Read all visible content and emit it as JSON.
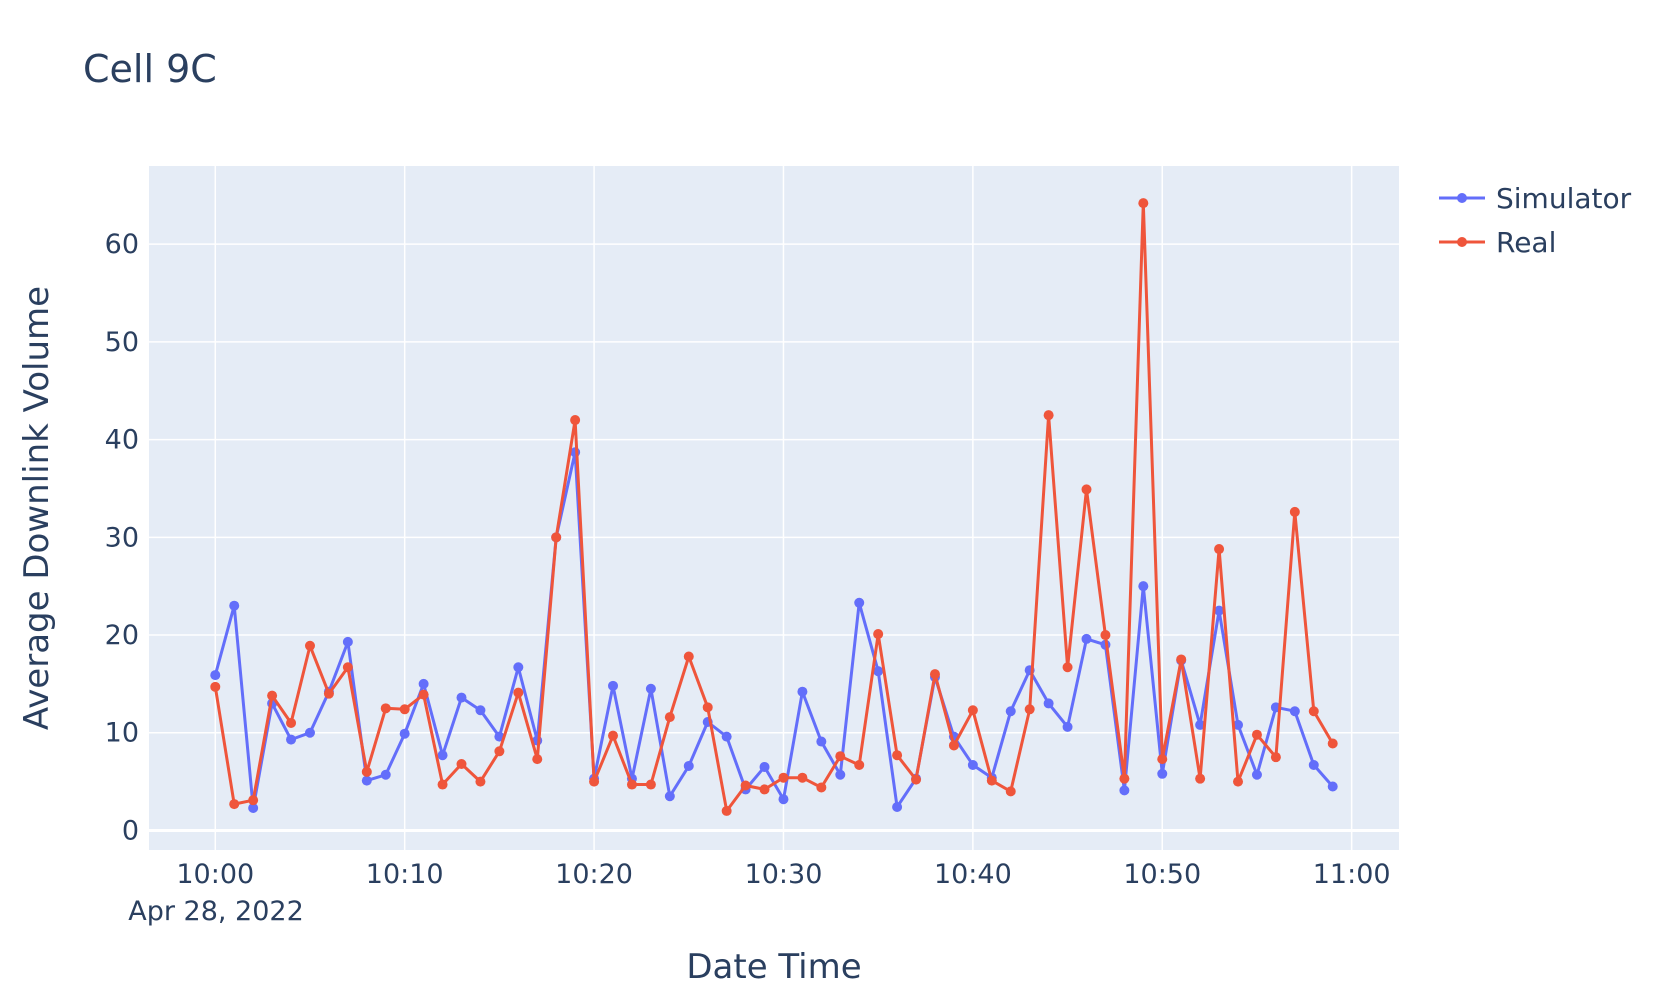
{
  "chart_data": {
    "type": "line",
    "title": "Cell 9C",
    "xlabel": "Date Time",
    "ylabel": "Average Downlink Volume",
    "x_date_label": "Apr 28, 2022",
    "x_ticks": [
      "10:00",
      "10:10",
      "10:20",
      "10:30",
      "10:40",
      "10:50",
      "11:00"
    ],
    "y_ticks": [
      0,
      10,
      20,
      30,
      40,
      50,
      60
    ],
    "xlim": [
      "09:56:30",
      "11:02:30"
    ],
    "ylim": [
      -2,
      68
    ],
    "x": [
      "10:00",
      "10:01",
      "10:02",
      "10:03",
      "10:04",
      "10:05",
      "10:06",
      "10:07",
      "10:08",
      "10:09",
      "10:10",
      "10:11",
      "10:12",
      "10:13",
      "10:14",
      "10:15",
      "10:16",
      "10:17",
      "10:18",
      "10:19",
      "10:20",
      "10:21",
      "10:22",
      "10:23",
      "10:24",
      "10:25",
      "10:26",
      "10:27",
      "10:28",
      "10:29",
      "10:30",
      "10:31",
      "10:32",
      "10:33",
      "10:34",
      "10:35",
      "10:36",
      "10:37",
      "10:38",
      "10:39",
      "10:40",
      "10:41",
      "10:42",
      "10:43",
      "10:44",
      "10:45",
      "10:46",
      "10:47",
      "10:48",
      "10:49",
      "10:50",
      "10:51",
      "10:52",
      "10:53",
      "10:54",
      "10:55",
      "10:56",
      "10:57",
      "10:58",
      "10:59"
    ],
    "series": [
      {
        "name": "Simulator",
        "color": "#636efa",
        "values": [
          15.9,
          23.0,
          2.3,
          13.0,
          9.3,
          10.0,
          14.2,
          19.3,
          5.1,
          5.7,
          9.9,
          15.0,
          7.7,
          13.6,
          12.3,
          9.6,
          16.7,
          9.2,
          30.0,
          38.7,
          5.3,
          14.8,
          5.3,
          14.5,
          3.5,
          6.6,
          11.1,
          9.6,
          4.2,
          6.5,
          3.2,
          14.2,
          9.1,
          5.7,
          23.3,
          16.3,
          2.4,
          5.3,
          15.7,
          9.6,
          6.7,
          5.4,
          12.2,
          16.4,
          13.0,
          10.6,
          19.6,
          19.0,
          4.1,
          25.0,
          5.8,
          17.4,
          10.8,
          22.5,
          10.8,
          5.7,
          12.6,
          12.2,
          6.7,
          4.5
        ]
      },
      {
        "name": "Real",
        "color": "#ef553b",
        "values": [
          14.7,
          2.7,
          3.1,
          13.8,
          11.0,
          18.9,
          14.0,
          16.7,
          6.0,
          12.5,
          12.4,
          13.9,
          4.7,
          6.8,
          5.0,
          8.1,
          14.1,
          7.3,
          30.0,
          42.0,
          5.0,
          9.7,
          4.7,
          4.7,
          11.6,
          17.8,
          12.6,
          2.0,
          4.6,
          4.2,
          5.4,
          5.4,
          4.4,
          7.6,
          6.7,
          20.1,
          7.7,
          5.2,
          16.0,
          8.7,
          12.3,
          5.1,
          4.0,
          12.4,
          42.5,
          16.7,
          34.9,
          20.0,
          5.3,
          64.2,
          7.3,
          17.5,
          5.3,
          28.8,
          5.0,
          9.8,
          7.5,
          32.6,
          12.2,
          8.9
        ]
      }
    ],
    "grid": true,
    "legend_position": "top-right"
  }
}
